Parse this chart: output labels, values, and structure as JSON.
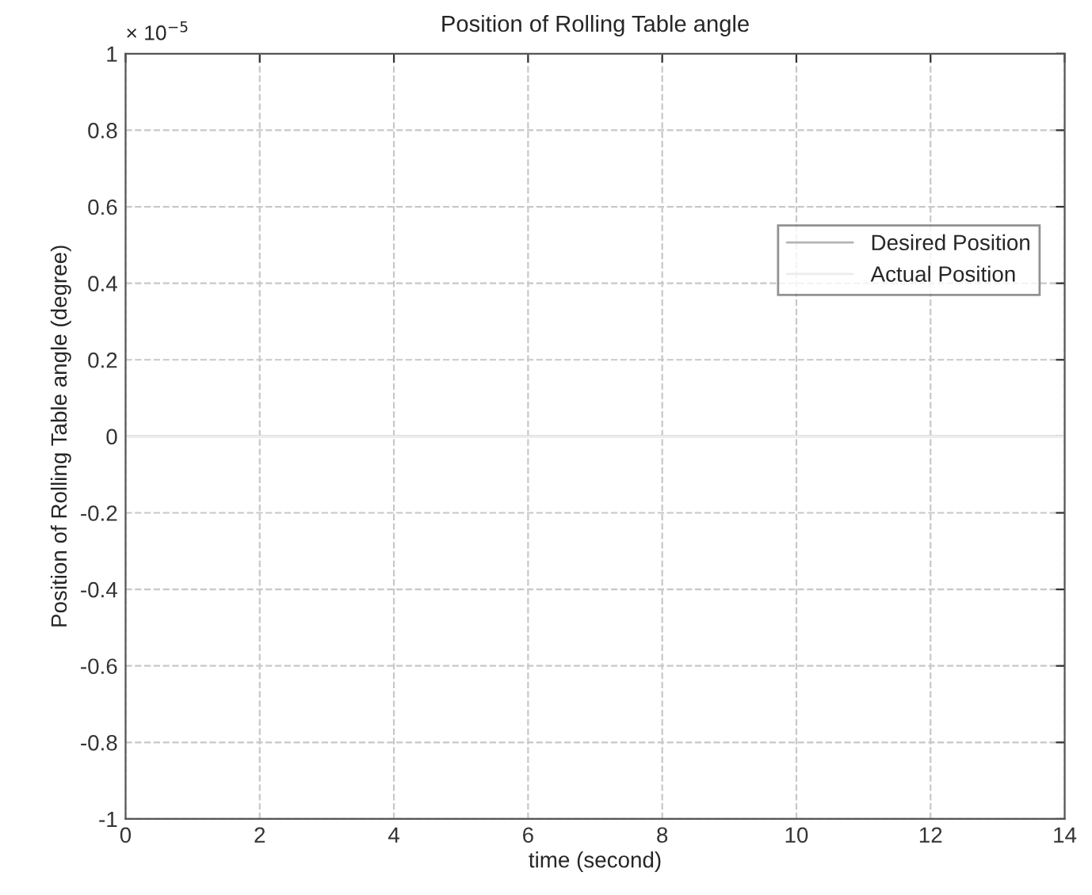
{
  "chart_data": {
    "type": "line",
    "title": "Position of Rolling Table angle",
    "xlabel": "time (second)",
    "ylabel": "Position of Rolling Table angle (degree)",
    "annotations": [
      "× 10$^{−5}$"
    ],
    "x": [
      0,
      14
    ],
    "series": [
      {
        "name": "Desired Position",
        "color": "#b4b4b4",
        "values": [
          0,
          0
        ]
      },
      {
        "name": "Actual Position",
        "color": "#ececec",
        "values": [
          0,
          0
        ]
      }
    ],
    "xlim": [
      0,
      14
    ],
    "xticks": [
      0,
      2,
      4,
      6,
      8,
      10,
      12,
      14
    ],
    "ylim": [
      -1,
      1
    ],
    "yticks": [
      -1,
      -0.8,
      -0.6,
      -0.4,
      -0.2,
      0,
      0.2,
      0.4,
      0.6,
      0.8,
      1
    ],
    "grid": true,
    "legend": "top right",
    "line_style": "solid"
  }
}
